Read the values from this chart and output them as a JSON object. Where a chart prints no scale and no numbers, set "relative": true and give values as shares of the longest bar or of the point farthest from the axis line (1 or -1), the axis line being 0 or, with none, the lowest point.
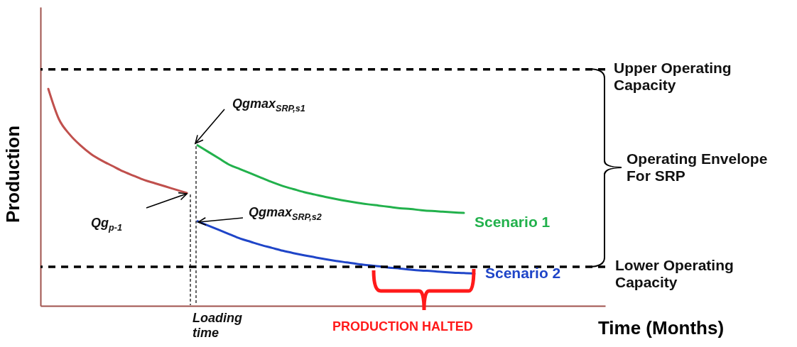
{
  "chart_data": {
    "type": "line",
    "relative": true,
    "xlabel": "Time (Months)",
    "ylabel": "Production",
    "categories": [
      null,
      null,
      null,
      null,
      null,
      null,
      null,
      null,
      null,
      null,
      null,
      null,
      null,
      null,
      null,
      null,
      null,
      null,
      null,
      null,
      null,
      null,
      null,
      null,
      null,
      null,
      null,
      null,
      null,
      null,
      null,
      null,
      null,
      null,
      null,
      null,
      null,
      null,
      null,
      null,
      null,
      null,
      null,
      null,
      null,
      null,
      null,
      null,
      null,
      null,
      null,
      null,
      null
    ],
    "series": [
      {
        "color": "#c0504d",
        "values": [
          1.0,
          0.86,
          0.79,
          0.74,
          0.7,
          0.67,
          0.645,
          0.62,
          0.6,
          0.58,
          0.565,
          0.55,
          0.535,
          0.52,
          null,
          null,
          null,
          null,
          null,
          null,
          null,
          null,
          null,
          null,
          null,
          null,
          null,
          null,
          null,
          null,
          null,
          null,
          null,
          null,
          null,
          null,
          null,
          null,
          null,
          null,
          null,
          null,
          null,
          null,
          null,
          null,
          null,
          null,
          null,
          null,
          null,
          null,
          null
        ]
      },
      {
        "name": "Scenario 1",
        "color": "#22b14c",
        "values": [
          null,
          null,
          null,
          null,
          null,
          null,
          null,
          null,
          null,
          null,
          null,
          null,
          null,
          null,
          0.74,
          0.71,
          0.68,
          0.65,
          0.63,
          0.61,
          0.59,
          0.57,
          0.552,
          0.538,
          0.524,
          0.513,
          0.502,
          0.492,
          0.483,
          0.475,
          0.468,
          0.462,
          0.456,
          0.45,
          0.446,
          0.441,
          0.437,
          0.434,
          0.431,
          0.428,
          null,
          null,
          null,
          null,
          null,
          null,
          null,
          null,
          null,
          null,
          null,
          null,
          null
        ]
      },
      {
        "name": "Scenario 2",
        "color": "#1f45c8",
        "values": [
          null,
          null,
          null,
          null,
          null,
          null,
          null,
          null,
          null,
          null,
          null,
          null,
          null,
          null,
          0.39,
          0.37,
          0.35,
          0.33,
          0.31,
          0.295,
          0.28,
          0.267,
          0.254,
          0.243,
          0.233,
          0.224,
          0.215,
          0.207,
          0.2,
          0.193,
          0.187,
          0.182,
          0.176,
          0.172,
          0.167,
          0.163,
          0.16,
          0.156,
          0.153,
          0.151,
          0.148,
          null,
          null,
          null,
          null,
          null,
          null,
          null,
          null,
          null,
          null,
          null,
          null
        ]
      }
    ],
    "ref_lines": [
      {
        "axis": "y",
        "value": 1.09,
        "label": "Upper Operating Capacity",
        "color": "#000000",
        "line_style": "dashed"
      },
      {
        "axis": "y",
        "value": 0.18,
        "label": "Lower Operating Capacity",
        "color": "#000000",
        "line_style": "dashed"
      }
    ],
    "annotations": [
      "Qgmax$_{SRP,s1}$",
      "Qg$_{p-1}$",
      "Qgmax$_{SRP,s2}$",
      "Loading time",
      "PRODUCTION HALTED",
      "Operating Envelope For SRP"
    ]
  }
}
